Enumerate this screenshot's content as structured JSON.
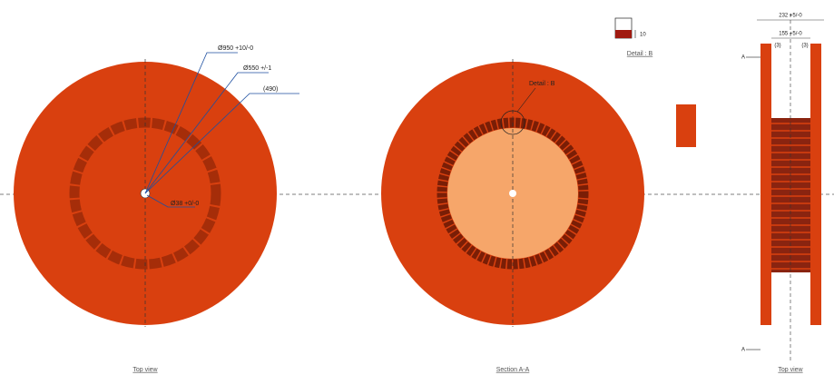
{
  "front_view": {
    "dimensions": [
      "Ø950 +10/-0",
      "Ø550 +/-1",
      "(490)",
      "Ø38 +0/-0"
    ],
    "caption": "Top view"
  },
  "section_view": {
    "callout": "Detail : B",
    "caption": "Section A-A"
  },
  "detail": {
    "title": "Detail : B",
    "dimension": "10"
  },
  "side_view": {
    "dimensions": [
      "232 +5/-0",
      "155 +5/-0",
      "(3)",
      "(3)"
    ],
    "section_marks": [
      "A",
      "A"
    ],
    "caption": "Top view"
  }
}
